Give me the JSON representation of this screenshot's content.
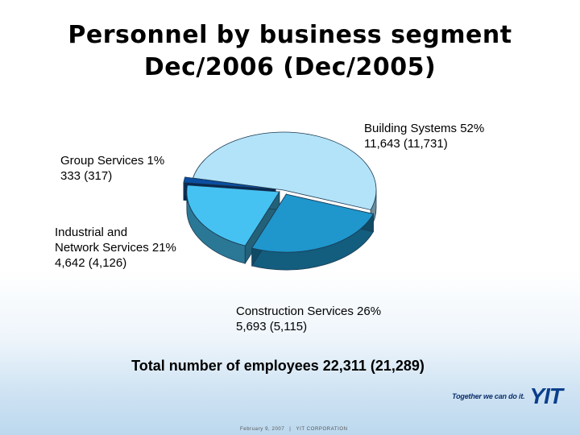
{
  "title": {
    "line1": "Personnel by business segment",
    "line2": "Dec/2006 (Dec/2005)"
  },
  "labels": {
    "building": {
      "line1": "Building Systems 52%",
      "line2": "11,643 (11,731)"
    },
    "group": {
      "line1": "Group Services 1%",
      "line2": "333 (317)"
    },
    "industrial": {
      "line1": "Industrial and",
      "line2": "Network Services 21%",
      "line3": "4,642 (4,126)"
    },
    "construction": {
      "line1": "Construction Services 26%",
      "line2": "5,693 (5,115)"
    }
  },
  "total": "Total number of employees 22,311 (21,289)",
  "brand": {
    "tagline": "Together we can do it.",
    "logo": "YIT"
  },
  "footer": {
    "date": "February 9, 2007",
    "separator": "|",
    "company": "YIT CORPORATION"
  },
  "colors": {
    "building": "#b3e3f8",
    "construction": "#1f96cc",
    "industrial": "#46c2f2",
    "group": "#0a4ea3"
  },
  "chart_data": {
    "type": "pie",
    "title": "Personnel by business segment Dec/2006 (Dec/2005)",
    "series": [
      {
        "name": "Dec/2006",
        "values": [
          11643,
          5693,
          4642,
          333
        ]
      },
      {
        "name": "Dec/2005",
        "values": [
          11731,
          5115,
          4126,
          317
        ]
      }
    ],
    "categories": [
      "Building Systems",
      "Construction Services",
      "Industrial and Network Services",
      "Group Services"
    ],
    "percentages": [
      52,
      26,
      21,
      1
    ],
    "total": {
      "Dec/2006": 22311,
      "Dec/2005": 21289
    }
  }
}
